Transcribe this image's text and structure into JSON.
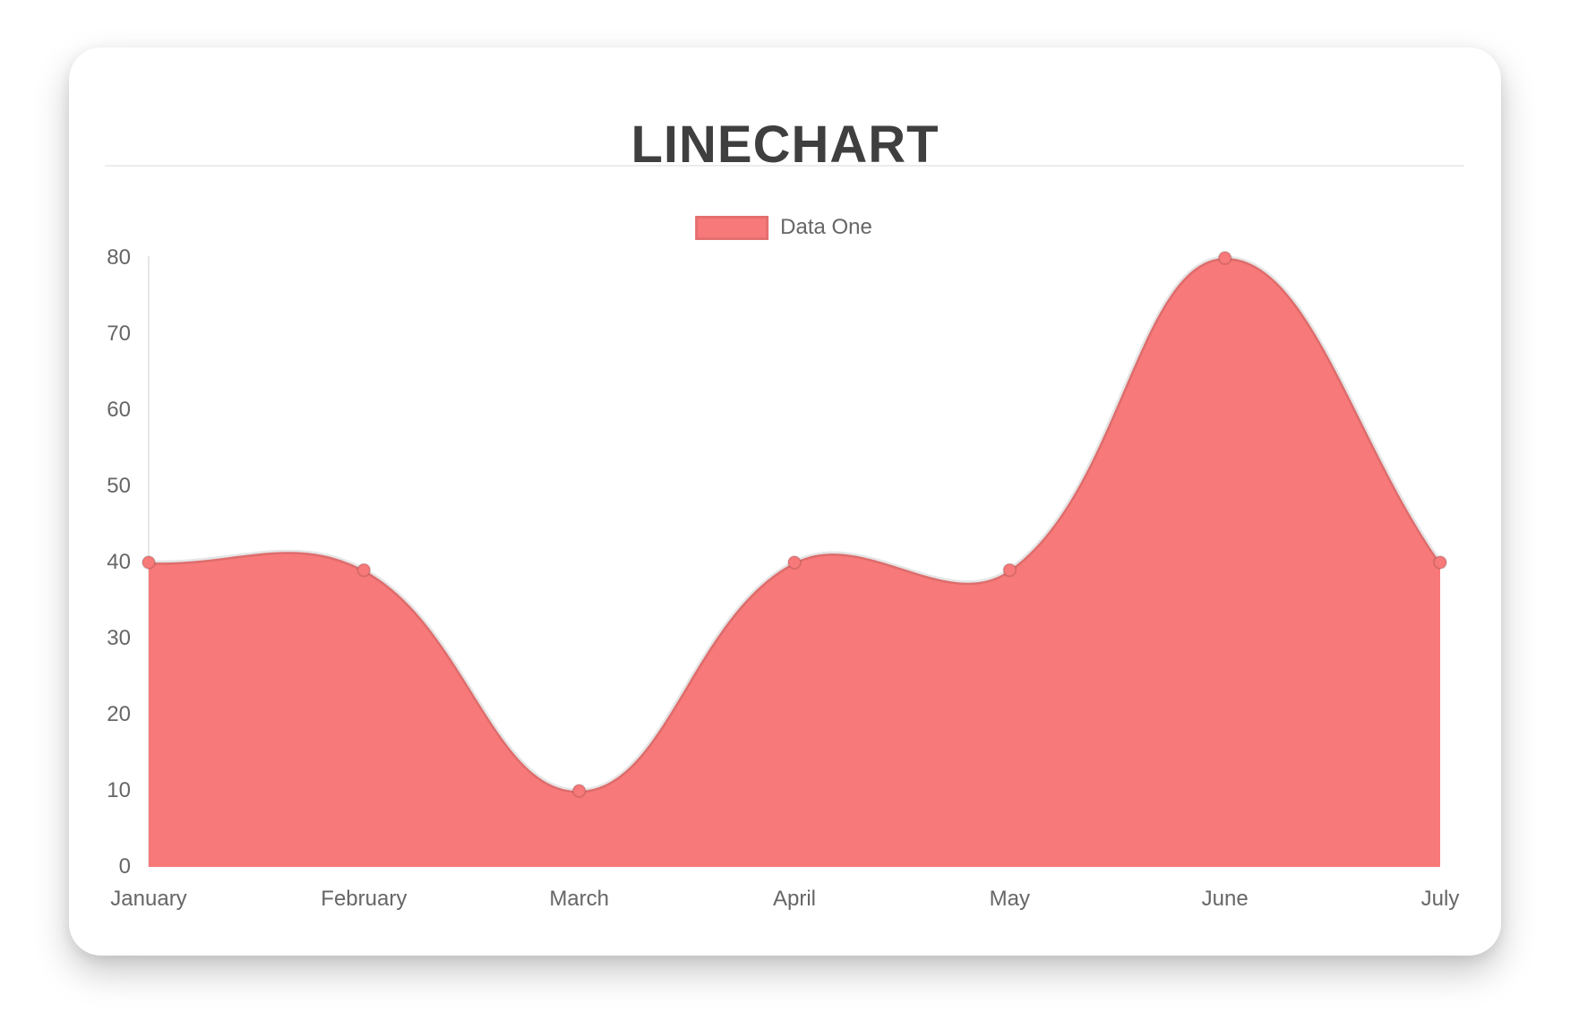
{
  "page": {
    "title": "LINECHART"
  },
  "legend": {
    "label": "Data One"
  },
  "chart_data": {
    "type": "area",
    "title": "LINECHART",
    "categories": [
      "January",
      "February",
      "March",
      "April",
      "May",
      "June",
      "July"
    ],
    "series": [
      {
        "name": "Data One",
        "values": [
          40,
          39,
          10,
          40,
          39,
          80,
          40
        ]
      }
    ],
    "ylim": [
      0,
      80
    ],
    "yticks": [
      0,
      10,
      20,
      30,
      40,
      50,
      60,
      70,
      80
    ],
    "xlabel": "",
    "ylabel": "",
    "grid": false,
    "legend_position": "top-center",
    "bezier_tension": 0.4,
    "colors": {
      "fill": "#f87979",
      "line_stroke": "rgba(0,0,0,0.10)",
      "point_fill": "#f87979",
      "point_border": "rgba(0,0,0,0.12)",
      "axis_line": "#e7e7e7",
      "tick_text": "#666666",
      "title_text": "#3f3f3f"
    }
  }
}
